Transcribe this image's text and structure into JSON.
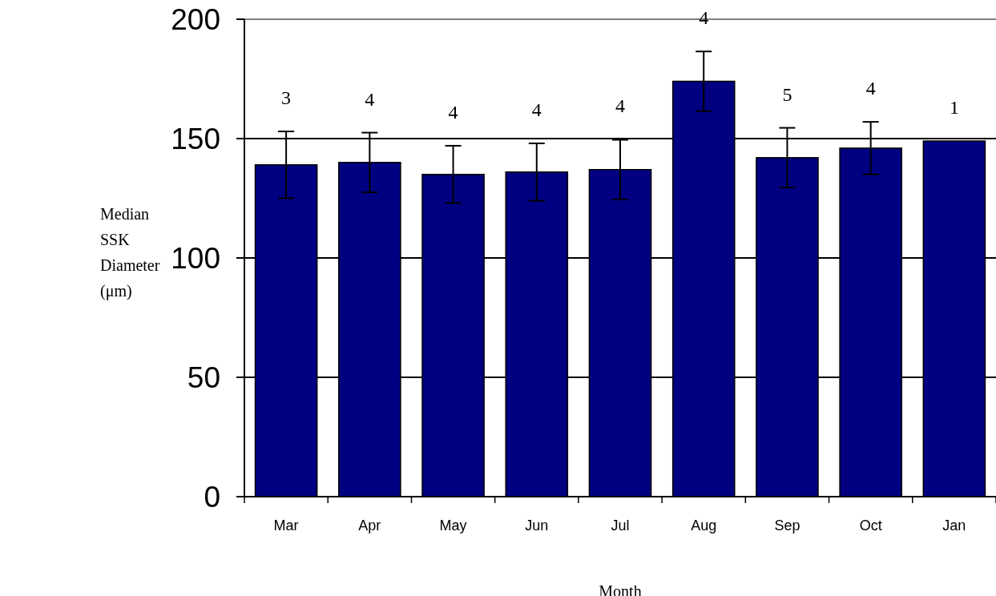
{
  "chart_data": {
    "type": "bar",
    "xlabel": "Month",
    "ylabel": "Median SSK Diameter (μm)",
    "categories": [
      "Mar",
      "Apr",
      "May",
      "Jun",
      "Jul",
      "Aug",
      "Sep",
      "Oct",
      "Jan"
    ],
    "values": [
      139,
      140,
      135,
      136,
      137,
      174,
      142,
      146,
      149
    ],
    "errors": [
      14,
      12.5,
      12,
      12,
      12.5,
      12.5,
      12.5,
      11,
      null
    ],
    "color": "#000080",
    "ylim": [
      0,
      200
    ],
    "yticks": [
      0,
      50,
      100,
      150,
      200
    ],
    "grid": "y",
    "annotations": [
      "3",
      "4",
      "4",
      "4",
      "4",
      "4",
      "5",
      "4",
      "1"
    ]
  }
}
